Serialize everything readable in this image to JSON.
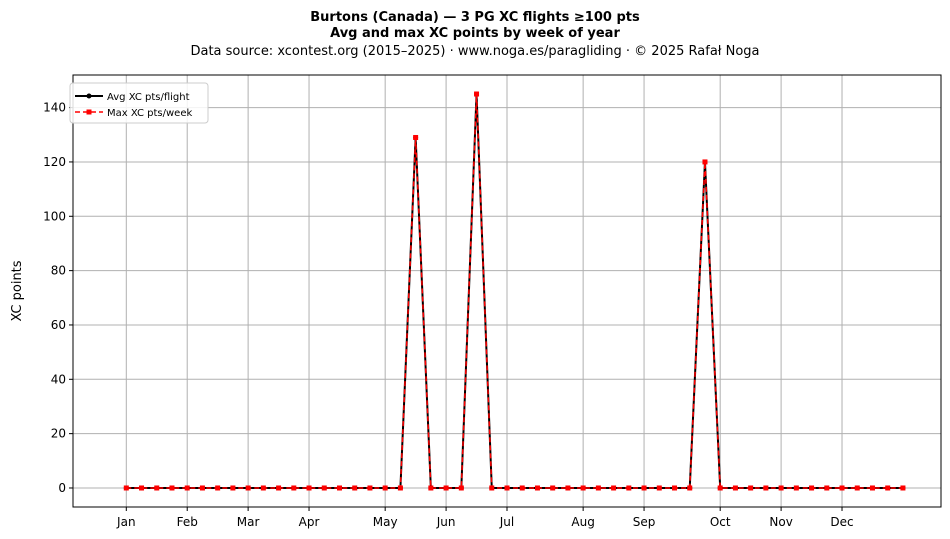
{
  "chart_data": {
    "type": "line",
    "title_line1": "Burtons (Canada)  —  3 PG XC flights ≥100 pts",
    "title_line2": "Avg and max XC points by week of year",
    "subtitle": "Data source: xcontest.org (2015–2025)  ·  www.noga.es/paragliding  ·  © 2025 Rafał Noga",
    "xlabel": "",
    "ylabel": "XC points",
    "x_range": [
      -2.5,
      54.5
    ],
    "ylim": [
      -7,
      152
    ],
    "grid": true,
    "legend_position": "top-left",
    "x_weeks": [
      1,
      2,
      3,
      4,
      5,
      6,
      7,
      8,
      9,
      10,
      11,
      12,
      13,
      14,
      15,
      16,
      17,
      18,
      19,
      20,
      21,
      22,
      23,
      24,
      25,
      26,
      27,
      28,
      29,
      30,
      31,
      32,
      33,
      34,
      35,
      36,
      37,
      38,
      39,
      40,
      41,
      42,
      43,
      44,
      45,
      46,
      47,
      48,
      49,
      50,
      51,
      52
    ],
    "x_tick_labels": [
      "Jan",
      "Feb",
      "Mar",
      "Apr",
      "May",
      "Jun",
      "Jul",
      "Aug",
      "Sep",
      "Oct",
      "Nov",
      "Dec"
    ],
    "x_tick_positions": [
      1,
      5,
      9,
      13,
      18,
      22,
      26,
      31,
      35,
      40,
      44,
      48
    ],
    "y_ticks": [
      0,
      20,
      40,
      60,
      80,
      100,
      120,
      140
    ],
    "series": [
      {
        "name": "Avg XC pts/flight",
        "color": "#000000",
        "values": [
          0,
          0,
          0,
          0,
          0,
          0,
          0,
          0,
          0,
          0,
          0,
          0,
          0,
          0,
          0,
          0,
          0,
          0,
          0,
          129,
          0,
          0,
          0,
          145,
          0,
          0,
          0,
          0,
          0,
          0,
          0,
          0,
          0,
          0,
          0,
          0,
          0,
          0,
          120,
          0,
          0,
          0,
          0,
          0,
          0,
          0,
          0,
          0,
          0,
          0,
          0,
          0
        ]
      },
      {
        "name": "Max XC pts/week",
        "color": "#ff0000",
        "values": [
          0,
          0,
          0,
          0,
          0,
          0,
          0,
          0,
          0,
          0,
          0,
          0,
          0,
          0,
          0,
          0,
          0,
          0,
          0,
          129,
          0,
          0,
          0,
          145,
          0,
          0,
          0,
          0,
          0,
          0,
          0,
          0,
          0,
          0,
          0,
          0,
          0,
          0,
          120,
          0,
          0,
          0,
          0,
          0,
          0,
          0,
          0,
          0,
          0,
          0,
          0,
          0
        ]
      }
    ]
  }
}
